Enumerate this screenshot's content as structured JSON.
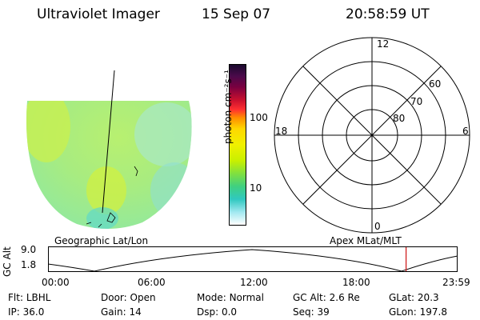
{
  "header": {
    "instrument": "Ultraviolet Imager",
    "date": "15 Sep 07",
    "time": "20:58:59 UT"
  },
  "panels": {
    "left_label": "Geographic Lat/Lon",
    "right_label": "Apex MLat/MLT"
  },
  "colorbar": {
    "label": "photon cm⁻²s⁻¹",
    "ticks": [
      "100",
      "10"
    ],
    "colors": [
      "#1a0a2e",
      "#7a0040",
      "#c8102e",
      "#ff3030",
      "#ff8c00",
      "#ffd700",
      "#f0f000",
      "#c8f000",
      "#80e040",
      "#40d080",
      "#30c8c0",
      "#a0e8f0",
      "#ffffff"
    ]
  },
  "polar": {
    "mlt_labels": {
      "top": "12",
      "left": "18",
      "right": "6",
      "bottom": "0"
    },
    "lat_labels": [
      "60",
      "70",
      "80"
    ]
  },
  "altitude_plot": {
    "ylabel": "GC Alt",
    "ymax": "9.0",
    "ymin": "1.8",
    "x_ticks": [
      "00:00",
      "06:00",
      "12:00",
      "18:00",
      "23:59"
    ],
    "current_time_fraction": 0.8743
  },
  "footer": {
    "row1": [
      {
        "key": "Flt:",
        "val": "LBHL"
      },
      {
        "key": "Door:",
        "val": "Open"
      },
      {
        "key": "Mode:",
        "val": "Normal"
      },
      {
        "key": "GC Alt:",
        "val": "2.6 Re"
      },
      {
        "key": "GLat:",
        "val": "20.3"
      }
    ],
    "row2": [
      {
        "key": "IP:",
        "val": "36.0"
      },
      {
        "key": "Gain:",
        "val": "14"
      },
      {
        "key": "Dsp:",
        "val": "0.0"
      },
      {
        "key": "Seq:",
        "val": "39"
      },
      {
        "key": "GLon:",
        "val": "197.8"
      }
    ]
  }
}
